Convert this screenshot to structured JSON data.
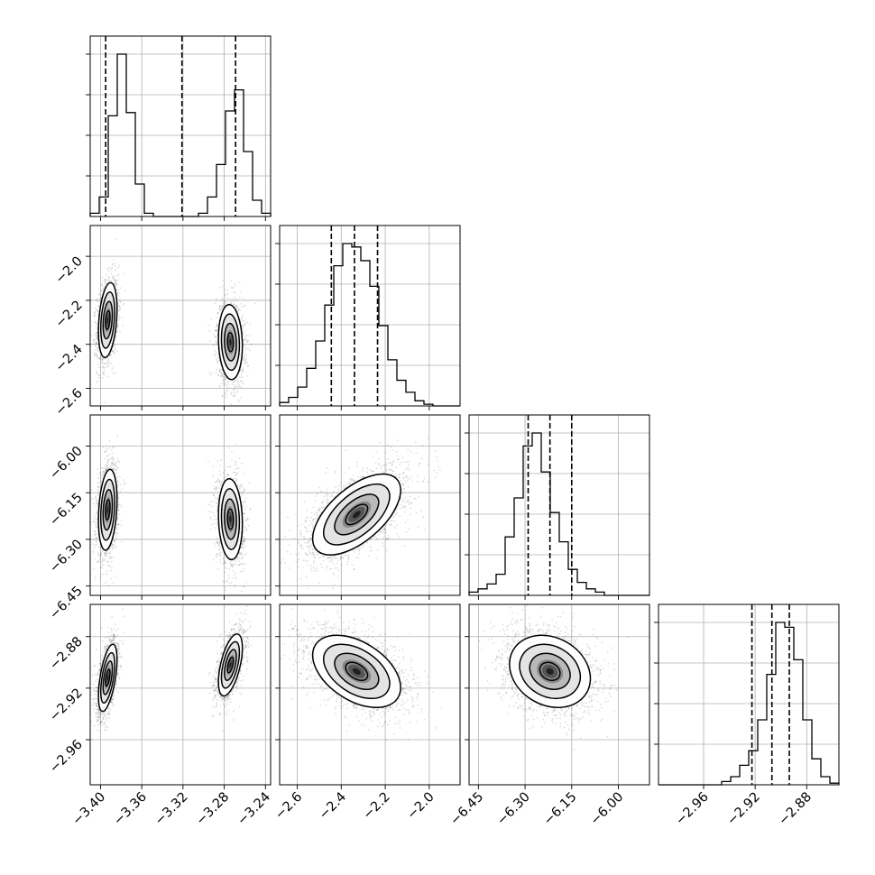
{
  "chart_data": {
    "type": "corner",
    "title": "",
    "grid": true,
    "variables": [
      {
        "name": "",
        "range": [
          -3.41,
          -3.235
        ],
        "ticks": [
          -3.4,
          -3.36,
          -3.32,
          -3.28,
          -3.24
        ],
        "tick_labels": [
          "−3.40",
          "−3.36",
          "−3.32",
          "−3.28",
          "−3.24"
        ],
        "hist_counts": [
          2,
          12,
          62,
          100,
          64,
          20,
          2,
          0,
          0,
          0,
          0,
          0,
          2,
          12,
          32,
          65,
          78,
          40,
          10,
          2
        ],
        "quantiles": [
          -3.395,
          -3.321,
          -3.269
        ],
        "modes": [
          {
            "center": -3.393,
            "std": 0.0045
          },
          {
            "center": -3.274,
            "std": 0.0058
          }
        ]
      },
      {
        "name": "",
        "range": [
          -2.68,
          -1.86
        ],
        "ticks": [
          -2.6,
          -2.4,
          -2.2,
          -2.0
        ],
        "tick_labels": [
          "−2.6",
          "−2.4",
          "−2.2",
          "−2.0"
        ],
        "hist_counts": [
          2,
          5,
          11,
          22,
          38,
          59,
          82,
          95,
          93,
          85,
          70,
          47,
          27,
          15,
          8,
          3,
          1,
          0,
          0,
          0
        ],
        "quantiles": [
          -2.445,
          -2.34,
          -2.235
        ],
        "modes": [
          {
            "center": -2.33,
            "std": 0.1
          }
        ]
      },
      {
        "name": "",
        "range": [
          -6.48,
          -5.9
        ],
        "ticks": [
          -6.45,
          -6.3,
          -6.15,
          -6.0
        ],
        "tick_labels": [
          "−6.45",
          "−6.30",
          "−6.15",
          "−6.00"
        ],
        "hist_counts": [
          2,
          4,
          7,
          13,
          36,
          60,
          92,
          100,
          76,
          51,
          33,
          16,
          8,
          4,
          2,
          0,
          0,
          0,
          0,
          0
        ],
        "quantiles": [
          -6.29,
          -6.22,
          -6.15
        ],
        "modes": [
          {
            "center": -6.22,
            "std": 0.065
          }
        ]
      },
      {
        "name": "",
        "range": [
          -2.995,
          -2.855
        ],
        "ticks": [
          -2.96,
          -2.92,
          -2.88
        ],
        "tick_labels": [
          "−2.96",
          "−2.92",
          "−2.88"
        ],
        "hist_counts": [
          0,
          0,
          0,
          0,
          0,
          0,
          0,
          2,
          5,
          12,
          21,
          40,
          68,
          100,
          97,
          77,
          40,
          16,
          5,
          1
        ],
        "quantiles": [
          -2.9225,
          -2.907,
          -2.8935
        ],
        "modes": [
          {
            "center": -2.908,
            "std": 0.014
          }
        ]
      }
    ],
    "pair_panels": [
      {
        "row": 1,
        "col": 0,
        "clusters": [
          {
            "mx": -3.393,
            "my": -2.29,
            "sx": 0.0045,
            "sy": 0.085,
            "rho": 0.3
          },
          {
            "mx": -3.274,
            "my": -2.39,
            "sx": 0.0058,
            "sy": 0.085,
            "rho": -0.1
          }
        ]
      },
      {
        "row": 2,
        "col": 0,
        "clusters": [
          {
            "mx": -3.393,
            "my": -6.205,
            "sx": 0.0045,
            "sy": 0.065,
            "rho": 0.25
          },
          {
            "mx": -3.274,
            "my": -6.235,
            "sx": 0.0058,
            "sy": 0.065,
            "rho": -0.1
          }
        ]
      },
      {
        "row": 2,
        "col": 1,
        "clusters": [
          {
            "mx": -2.33,
            "my": -6.22,
            "sx": 0.1,
            "sy": 0.065,
            "rho": 0.6
          }
        ]
      },
      {
        "row": 3,
        "col": 0,
        "clusters": [
          {
            "mx": -3.393,
            "my": -2.912,
            "sx": 0.0045,
            "sy": 0.013,
            "rho": 0.55
          },
          {
            "mx": -3.274,
            "my": -2.902,
            "sx": 0.0058,
            "sy": 0.012,
            "rho": 0.55
          }
        ]
      },
      {
        "row": 3,
        "col": 1,
        "clusters": [
          {
            "mx": -2.33,
            "my": -2.907,
            "sx": 0.1,
            "sy": 0.014,
            "rho": -0.45
          }
        ]
      },
      {
        "row": 3,
        "col": 2,
        "clusters": [
          {
            "mx": -6.22,
            "my": -2.907,
            "sx": 0.065,
            "sy": 0.014,
            "rho": -0.2
          }
        ]
      }
    ],
    "contour_levels_sigma": [
      0.5,
      1.0,
      1.5,
      2.0
    ]
  }
}
